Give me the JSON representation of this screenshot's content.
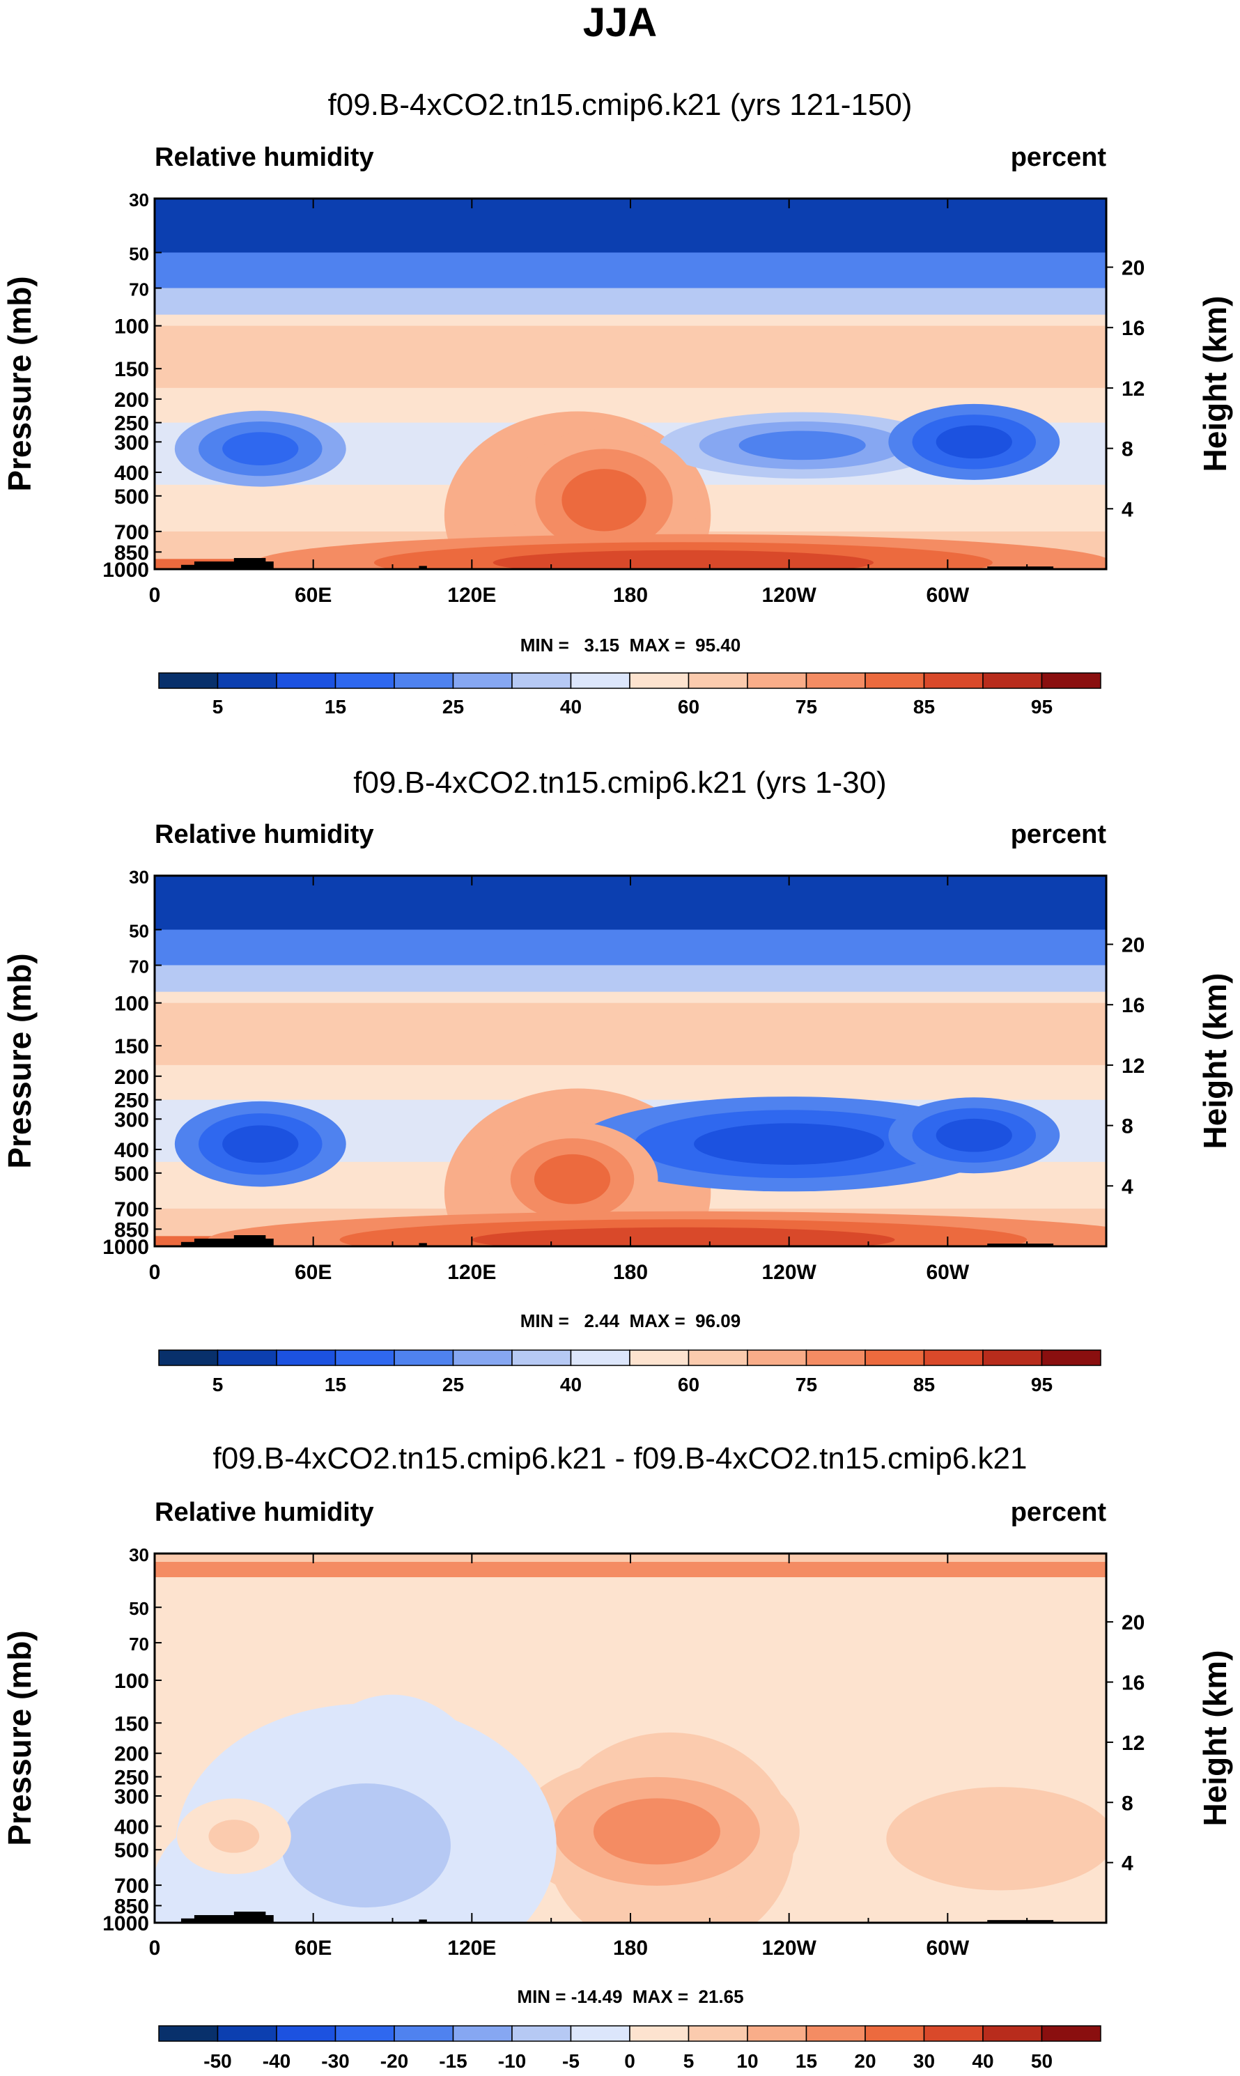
{
  "page_title": "JJA",
  "colors": {
    "blues": [
      "#08306b",
      "#0c3fb0",
      "#1c52e0",
      "#2f68ef",
      "#4f82ef",
      "#86a7f2",
      "#b6c9f4",
      "#dce6fb"
    ],
    "reds": [
      "#fde3cf",
      "#fbcbae",
      "#f9ad89",
      "#f48c63",
      "#ec6a3e",
      "#d9492a",
      "#b82c1c",
      "#8a0f0f"
    ],
    "land": "#000000",
    "top_band": "#1236c8"
  },
  "chart_data": [
    {
      "type": "contour",
      "title": "f09.B-4xCO2.tn15.cmip6.k21 (yrs 121-150)",
      "left_label": "Relative humidity",
      "right_label": "percent",
      "ylabel": "Pressure (mb)",
      "ylabel_right": "Height (km)",
      "y_ticks": [
        "30",
        "50",
        "70",
        "100",
        "150",
        "200",
        "250",
        "300",
        "400",
        "500",
        "700",
        "850",
        "1000"
      ],
      "y_ticks_right": [
        "20",
        "16",
        "12",
        "8",
        "4"
      ],
      "x_ticks": [
        "0",
        "60E",
        "120E",
        "180",
        "120W",
        "60W"
      ],
      "stats": "MIN =   3.15  MAX =  95.40",
      "colorbar_labels": [
        "5",
        "15",
        "25",
        "40",
        "60",
        "75",
        "85",
        "95"
      ],
      "blobs": [
        {
          "lon": 40,
          "p": 320,
          "color_index": 3,
          "kind": "blue",
          "rx": 18,
          "ry": 80
        },
        {
          "lon": 245,
          "p": 310,
          "color_index": 4,
          "kind": "blue",
          "rx": 30,
          "ry": 70
        },
        {
          "lon": 310,
          "p": 300,
          "color_index": 2,
          "kind": "blue",
          "rx": 18,
          "ry": 80
        },
        {
          "lon": 170,
          "p": 520,
          "color_index": 4,
          "kind": "red",
          "rx": 20,
          "ry": 150
        },
        {
          "lon": 200,
          "p": 940,
          "color_index": 5,
          "kind": "red",
          "rx": 90,
          "ry": 60
        }
      ]
    },
    {
      "type": "contour",
      "title": "f09.B-4xCO2.tn15.cmip6.k21 (yrs 1-30)",
      "left_label": "Relative humidity",
      "right_label": "percent",
      "ylabel": "Pressure (mb)",
      "ylabel_right": "Height (km)",
      "y_ticks": [
        "30",
        "50",
        "70",
        "100",
        "150",
        "200",
        "250",
        "300",
        "400",
        "500",
        "700",
        "850",
        "1000"
      ],
      "y_ticks_right": [
        "20",
        "16",
        "12",
        "8",
        "4"
      ],
      "x_ticks": [
        "0",
        "60E",
        "120E",
        "180",
        "120W",
        "60W"
      ],
      "stats": "MIN =   2.44  MAX =  96.09",
      "colorbar_labels": [
        "5",
        "15",
        "25",
        "40",
        "60",
        "75",
        "85",
        "95"
      ],
      "blobs": [
        {
          "lon": 40,
          "p": 380,
          "color_index": 2,
          "kind": "blue",
          "rx": 18,
          "ry": 90
        },
        {
          "lon": 240,
          "p": 380,
          "color_index": 2,
          "kind": "blue",
          "rx": 45,
          "ry": 100
        },
        {
          "lon": 310,
          "p": 350,
          "color_index": 2,
          "kind": "blue",
          "rx": 18,
          "ry": 80
        },
        {
          "lon": 158,
          "p": 530,
          "color_index": 4,
          "kind": "red",
          "rx": 18,
          "ry": 120
        },
        {
          "lon": 200,
          "p": 940,
          "color_index": 5,
          "kind": "red",
          "rx": 100,
          "ry": 60
        }
      ]
    },
    {
      "type": "contour",
      "title": "f09.B-4xCO2.tn15.cmip6.k21 - f09.B-4xCO2.tn15.cmip6.k21",
      "left_label": "Relative humidity",
      "right_label": "percent",
      "ylabel": "Pressure (mb)",
      "ylabel_right": "Height (km)",
      "y_ticks": [
        "30",
        "50",
        "70",
        "100",
        "150",
        "200",
        "250",
        "300",
        "400",
        "500",
        "700",
        "850",
        "1000"
      ],
      "y_ticks_right": [
        "20",
        "16",
        "12",
        "8",
        "4"
      ],
      "x_ticks": [
        "0",
        "60E",
        "120E",
        "180",
        "120W",
        "60W"
      ],
      "stats": "MIN = -14.49  MAX =  21.65",
      "colorbar_labels": [
        "-50",
        "-40",
        "-30",
        "-20",
        "-15",
        "-10",
        "-5",
        "0",
        "5",
        "10",
        "15",
        "20",
        "30",
        "40",
        "50"
      ],
      "blobs": [
        {
          "lon": 190,
          "p": 420,
          "color_index": 3,
          "kind": "red",
          "rx": 30,
          "ry": 160
        },
        {
          "lon": 80,
          "p": 480,
          "color_index": 6,
          "kind": "blue",
          "rx": 40,
          "ry": 300
        },
        {
          "lon": 30,
          "p": 440,
          "color_index": 1,
          "kind": "red",
          "rx": 12,
          "ry": 80
        }
      ]
    }
  ]
}
